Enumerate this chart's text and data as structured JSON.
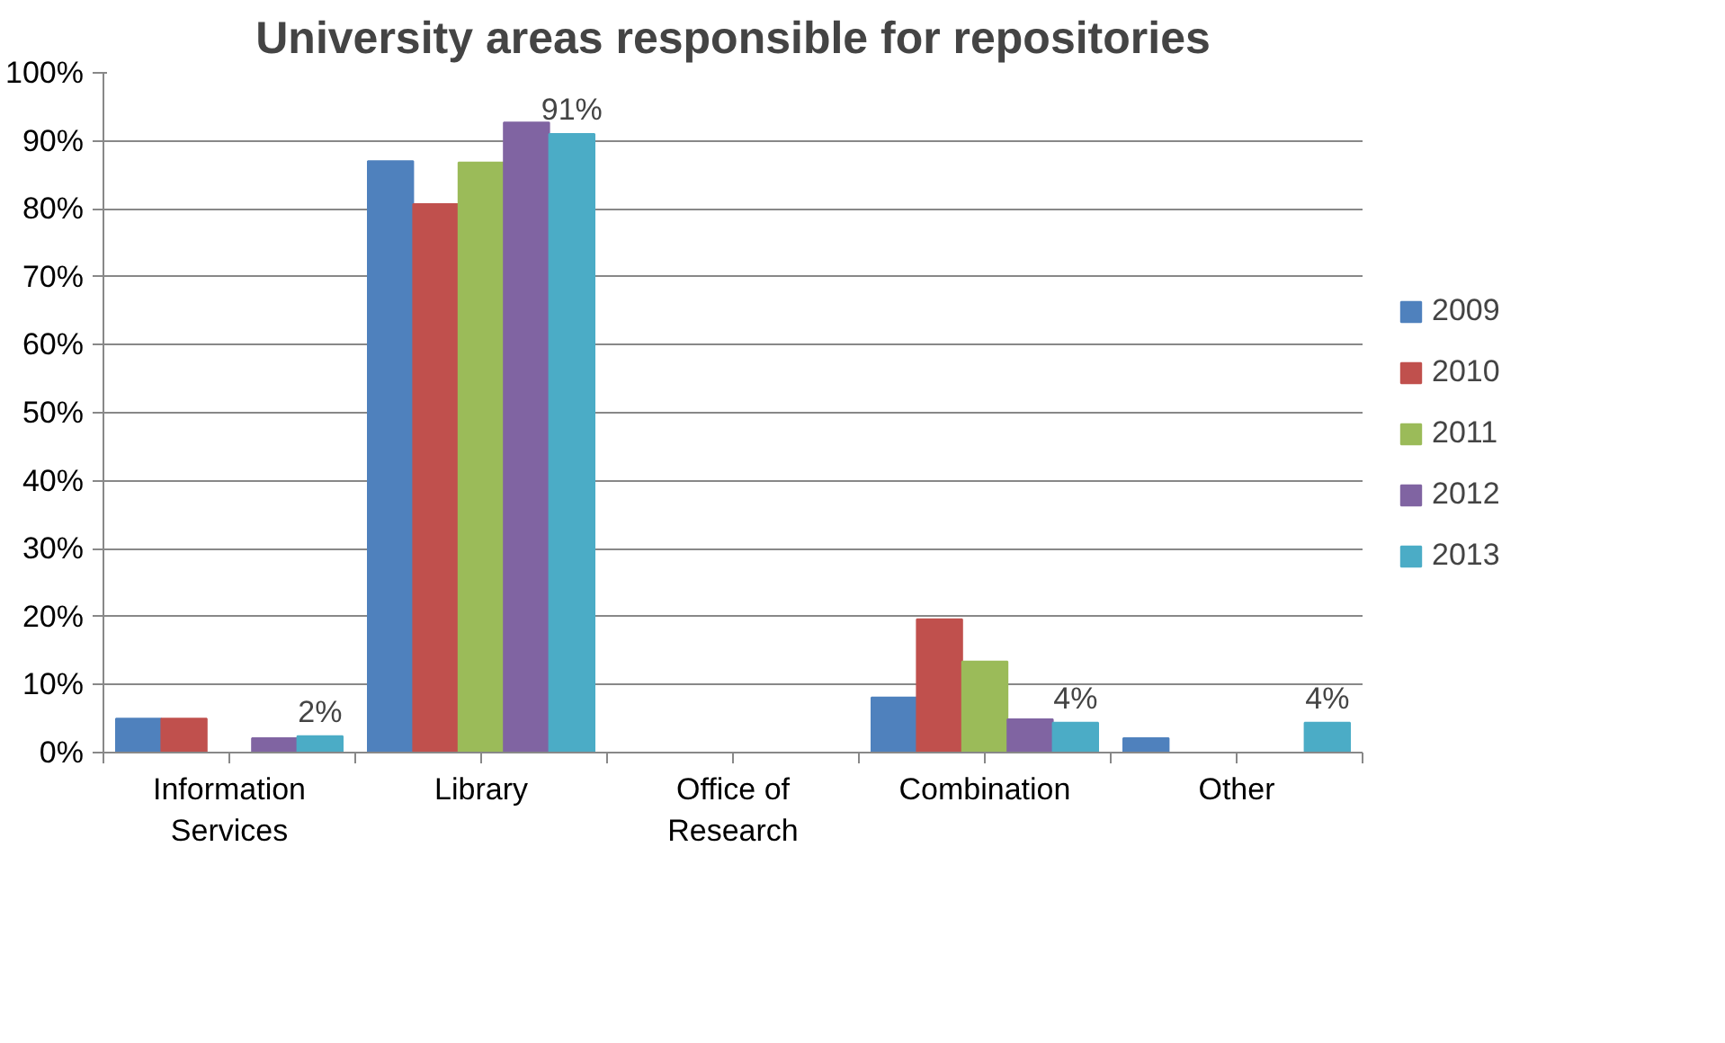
{
  "chart_data": {
    "type": "bar",
    "title": "University areas responsible for repositories",
    "categories": [
      "Information\nServices",
      "Library",
      "Office of\nResearch",
      "Combination",
      "Other"
    ],
    "series": [
      {
        "name": "2009",
        "color": "#4f81bd",
        "values": [
          5.0,
          87.0,
          0,
          8.1,
          2.1
        ]
      },
      {
        "name": "2010",
        "color": "#c0504d",
        "values": [
          5.0,
          80.7,
          0,
          19.6,
          0
        ]
      },
      {
        "name": "2011",
        "color": "#9bbb59",
        "values": [
          0,
          86.8,
          0,
          13.4,
          0
        ]
      },
      {
        "name": "2012",
        "color": "#8064a2",
        "values": [
          2.1,
          92.7,
          0,
          4.9,
          0
        ]
      },
      {
        "name": "2013",
        "color": "#4bacc6",
        "values": [
          2.4,
          91,
          0,
          4.4,
          4.4
        ],
        "value_labels": [
          "2%",
          "91%",
          null,
          "4%",
          "4%"
        ]
      }
    ],
    "ylim": [
      0,
      100
    ],
    "yticks": [
      {
        "value": 0,
        "label": "0%"
      },
      {
        "value": 10,
        "label": "10%"
      },
      {
        "value": 20,
        "label": "20%"
      },
      {
        "value": 30,
        "label": "30%"
      },
      {
        "value": 40,
        "label": "40%"
      },
      {
        "value": 50,
        "label": "50%"
      },
      {
        "value": 60,
        "label": "60%"
      },
      {
        "value": 70,
        "label": "70%"
      },
      {
        "value": 80,
        "label": "80%"
      },
      {
        "value": 90,
        "label": "90%"
      },
      {
        "value": 100,
        "label": "100%"
      }
    ],
    "grid": "y",
    "legend": "right"
  }
}
